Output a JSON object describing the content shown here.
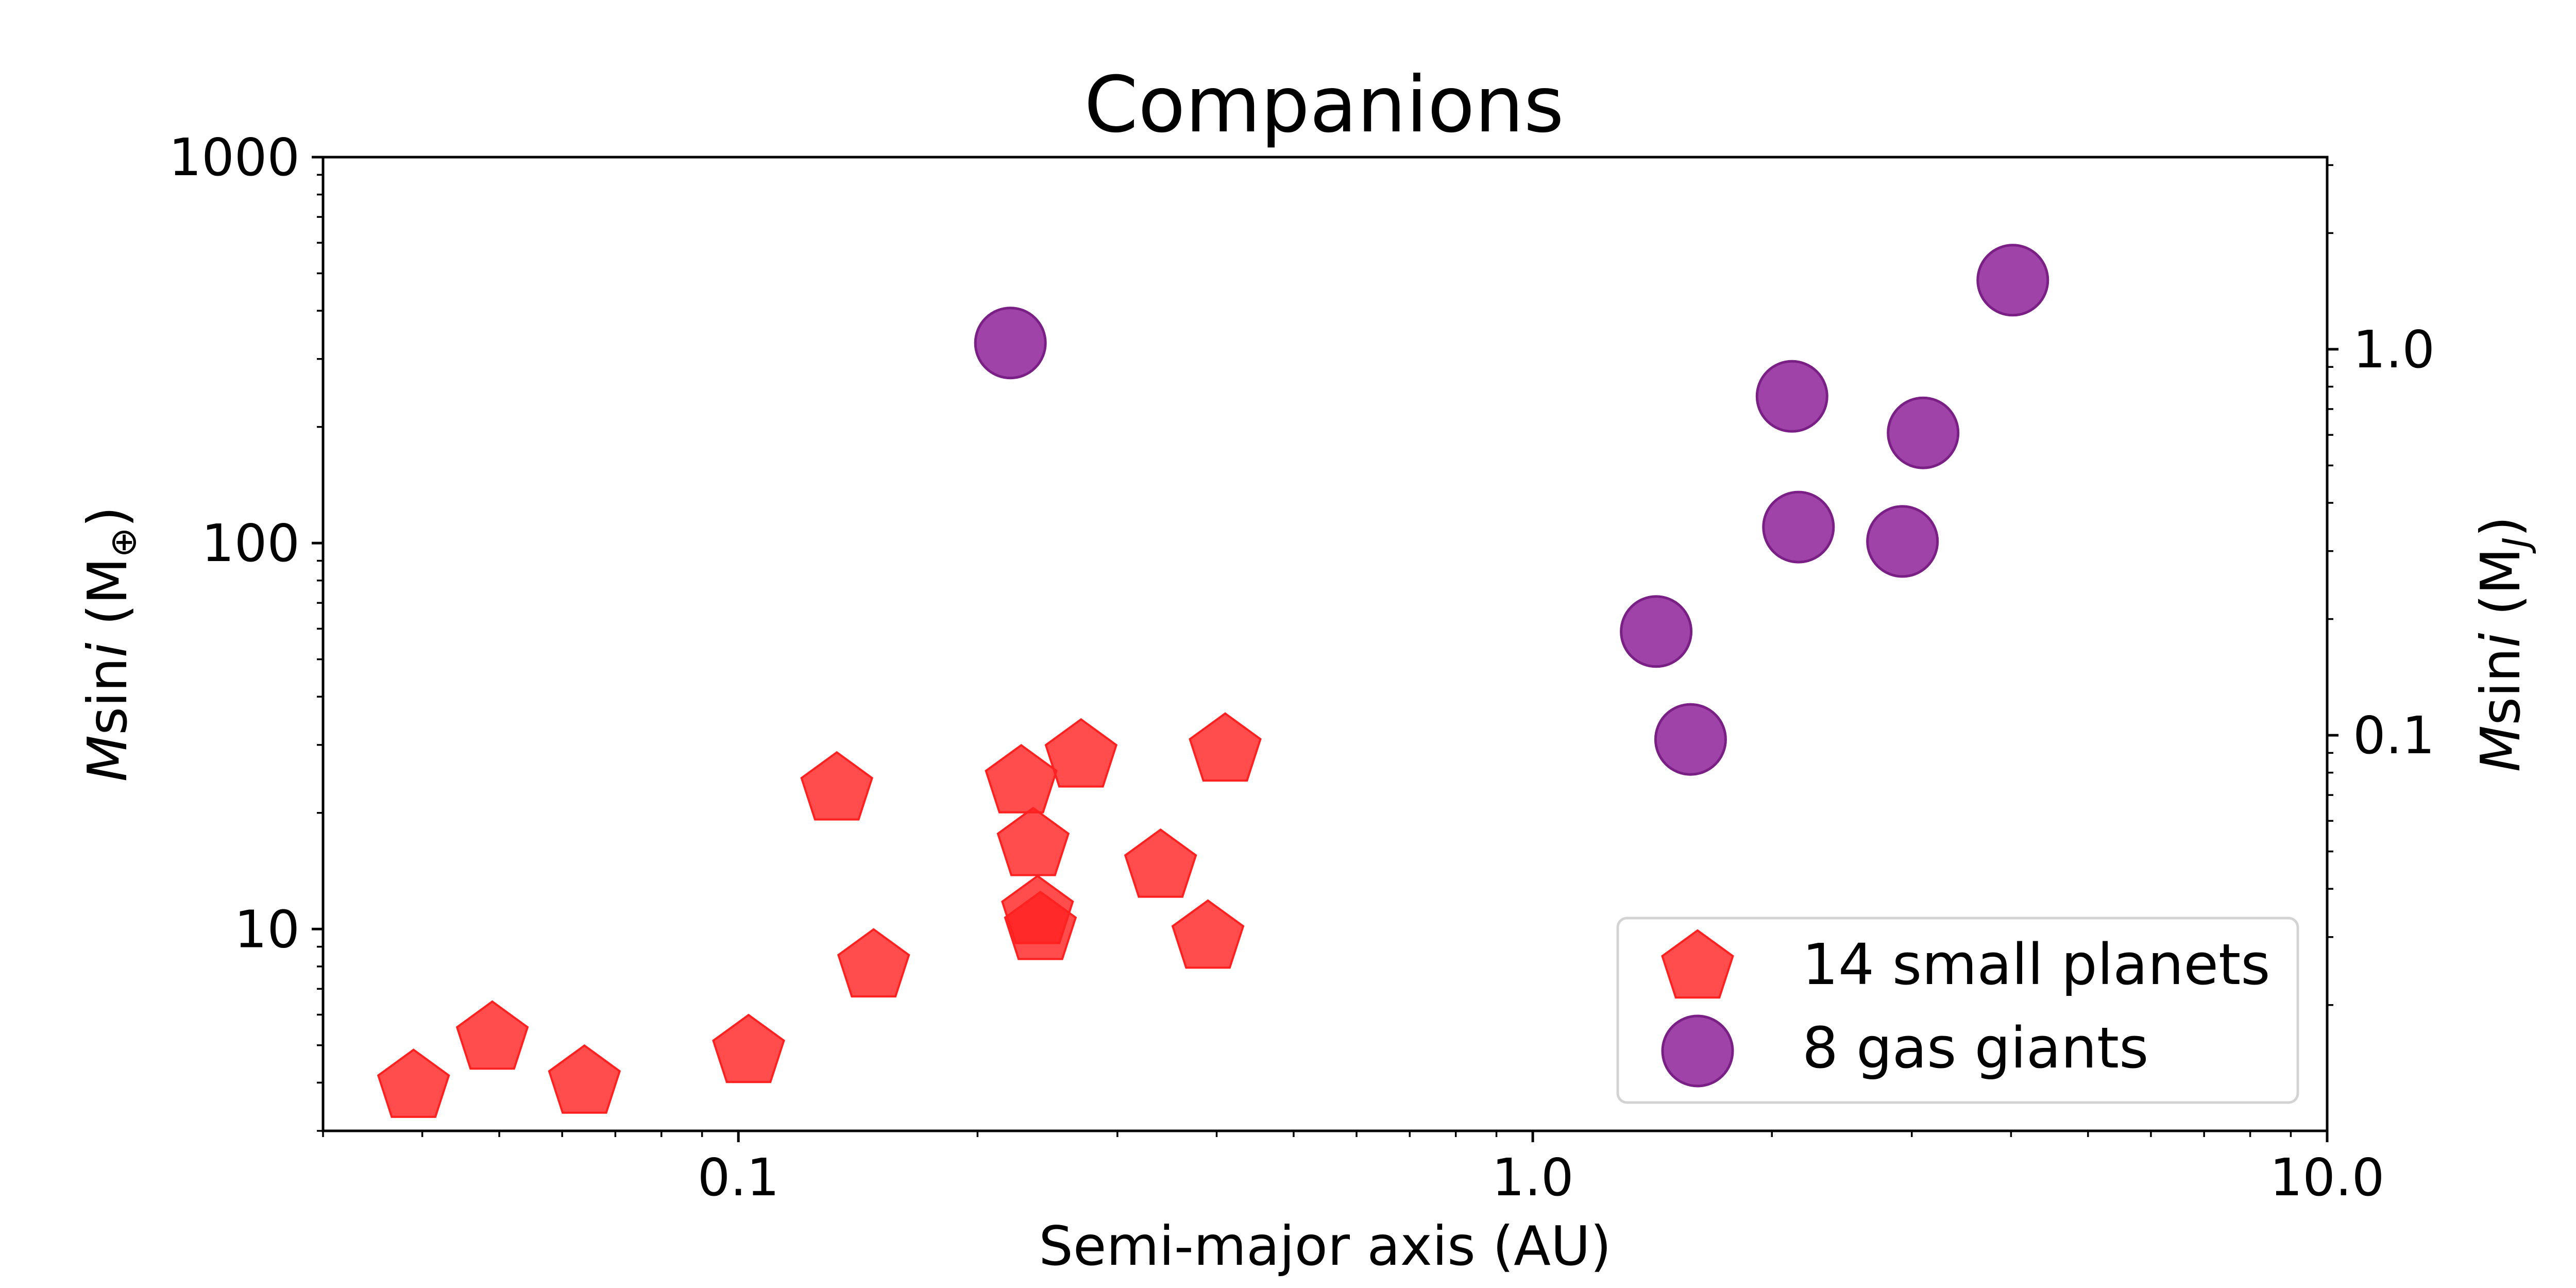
{
  "chart_data": {
    "type": "scatter",
    "title": "Companions",
    "xlabel": "Semi-major axis (AU)",
    "ylabel_left": {
      "prefix": "M",
      "mid": "sin",
      "i": "i",
      "unit_open": " (M",
      "unit_sub": "⊕",
      "unit_close": ")"
    },
    "ylabel_right": {
      "prefix": "M",
      "mid": "sin",
      "i": "i",
      "unit_open": " (M",
      "unit_sub": "J",
      "unit_close": ")"
    },
    "x_scale": "log",
    "y_scale": "log",
    "xlim": [
      0.03,
      10.0
    ],
    "ylim": [
      3,
      1000
    ],
    "ylim_right": [
      0.00944,
      3.146
    ],
    "x_ticks": [
      {
        "value": 0.1,
        "label": "0.1"
      },
      {
        "value": 1.0,
        "label": "1.0"
      },
      {
        "value": 10.0,
        "label": "10.0"
      }
    ],
    "y_ticks": [
      {
        "value": 10,
        "label": "10"
      },
      {
        "value": 100,
        "label": "100"
      },
      {
        "value": 1000,
        "label": "1000"
      }
    ],
    "y_ticks_right": [
      {
        "value": 0.1,
        "label": "0.1"
      },
      {
        "value": 1.0,
        "label": "1.0"
      }
    ],
    "grid": false,
    "legend_position": "lower-right",
    "series": [
      {
        "name": "14 small planets",
        "marker": "pentagon",
        "color": "#ff2020",
        "x": [
          0.039,
          0.049,
          0.064,
          0.103,
          0.133,
          0.148,
          0.227,
          0.235,
          0.238,
          0.24,
          0.27,
          0.34,
          0.39,
          0.41
        ],
        "y": [
          3.9,
          5.2,
          4.0,
          4.8,
          23,
          8.0,
          24,
          16.5,
          11,
          10,
          28,
          14.5,
          9.5,
          29
        ]
      },
      {
        "name": "8 gas giants",
        "marker": "circle",
        "color": "#952f9e",
        "x": [
          0.22,
          1.43,
          1.58,
          2.12,
          2.16,
          2.92,
          3.1,
          4.02
        ],
        "y": [
          330,
          59,
          31,
          240,
          110,
          101,
          193,
          480
        ]
      }
    ]
  }
}
